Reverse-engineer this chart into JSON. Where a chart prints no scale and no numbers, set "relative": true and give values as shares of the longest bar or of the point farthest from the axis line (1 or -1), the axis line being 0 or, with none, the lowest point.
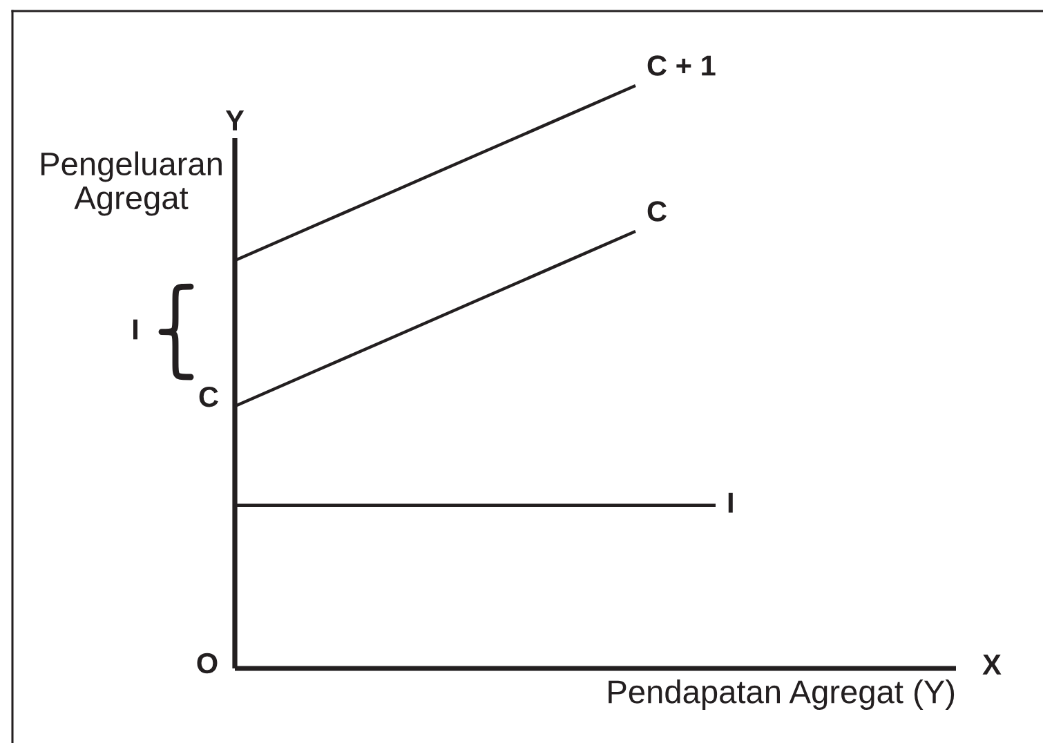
{
  "chart_data": {
    "type": "line",
    "relative": true,
    "xlabel": "Pendapatan Agregat (Y)",
    "ylabel": "Pengeluaran Agregat",
    "categories": [
      null,
      null,
      null,
      null,
      null,
      null,
      null,
      null,
      null,
      null
    ],
    "series": [
      {
        "name": "C + 1",
        "color": "#231f20",
        "values": [
          0.7,
          0.76,
          0.82,
          0.88,
          0.94,
          1.0,
          null,
          null,
          null,
          null
        ]
      },
      {
        "name": "C",
        "color": "#231f20",
        "values": [
          0.45,
          0.51,
          0.57,
          0.63,
          0.69,
          0.75,
          null,
          null,
          null,
          null
        ]
      },
      {
        "name": "I",
        "color": "#231f20",
        "values": [
          0.28,
          0.28,
          0.28,
          0.28,
          0.28,
          0.28,
          0.28,
          null,
          null,
          null
        ]
      }
    ],
    "annotations": [
      "Y",
      "X",
      "O",
      "I",
      "C"
    ],
    "line_style": "solid"
  }
}
